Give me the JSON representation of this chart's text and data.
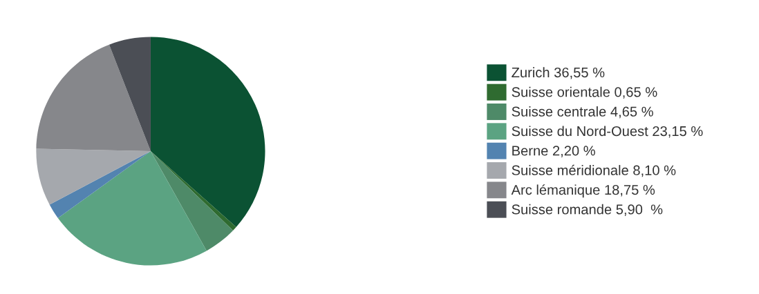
{
  "chart_data": {
    "type": "pie",
    "categories": [
      "Zurich",
      "Suisse orientale",
      "Suisse centrale",
      "Suisse du Nord-Ouest",
      "Berne",
      "Suisse méridionale",
      "Arc lémanique",
      "Suisse romande"
    ],
    "values": [
      36.55,
      0.65,
      4.65,
      23.15,
      2.2,
      8.1,
      18.75,
      5.9
    ],
    "value_labels": [
      "36,55 %",
      "0,65 %",
      "4,65 %",
      "23,15 %",
      "2,20 %",
      "8,10 %",
      "18,75 %",
      "5,90  %"
    ],
    "colors": [
      "#0b5233",
      "#2f6b30",
      "#4e8a68",
      "#5ba382",
      "#5383b0",
      "#a5a8ad",
      "#86878b",
      "#4b4e55"
    ],
    "legend": "right"
  }
}
